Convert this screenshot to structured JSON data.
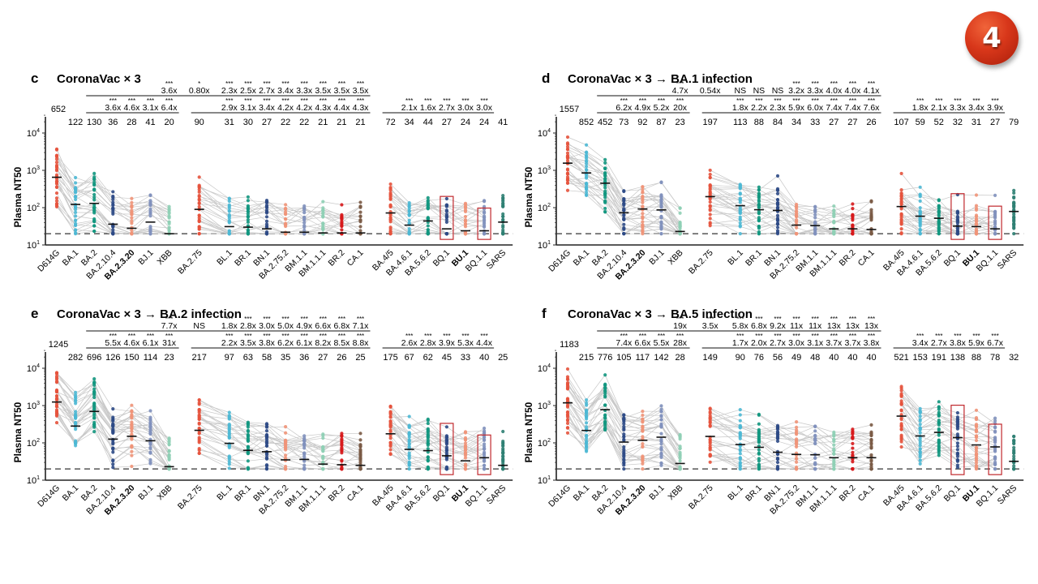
{
  "slide_badge": {
    "number": "4",
    "color": "#d8371a"
  },
  "shared": {
    "ylabel": "Plasma NT50",
    "yticks": [
      "10^1",
      "10^2",
      "10^3",
      "10^4"
    ],
    "ylim_log10": [
      1,
      4.3
    ],
    "detection_limit": 20,
    "categories": [
      "D614G",
      "BA.1",
      "BA.2",
      "BA.2.10.4",
      "BA.2.3.20",
      "BJ.1",
      "XBB",
      "BA.2.75",
      "BL.1",
      "BR.1",
      "BN.1",
      "BA.2.75.2",
      "BM.1.1",
      "BM.1.1.1",
      "BR.2",
      "CA.1",
      "BA.4/5",
      "BA.4.6.1",
      "BA.5.6.2",
      "BQ.1",
      "BU.1",
      "BQ.1.1",
      "SARS"
    ],
    "bold_categories": [
      "BA.2.3.20",
      "BU.1"
    ],
    "highlighted_categories": [
      "BQ.1",
      "BQ.1.1"
    ],
    "category_colors": [
      "#e5533d",
      "#4cb8d4",
      "#13977f",
      "#2e4a86",
      "#ef9478",
      "#8191bd",
      "#8fcfb5",
      "#e5533d",
      "#4cb8d4",
      "#13977f",
      "#2e4a86",
      "#ef9478",
      "#8191bd",
      "#8fcfb5",
      "#d7191c",
      "#7a5a45",
      "#e5533d",
      "#4cb8d4",
      "#13977f",
      "#2e4a86",
      "#ef9478",
      "#8191bd",
      "#2f7f73"
    ],
    "highlight_box_color": "#c0282d"
  },
  "chart_data": [
    {
      "type": "scatter",
      "panel_letter": "c",
      "title": "CoronaVac × 3",
      "ylabel": "Plasma NT50",
      "ylim": [
        10,
        20000
      ],
      "yscale": "log",
      "gmt_values": [
        652,
        122,
        130,
        36,
        28,
        41,
        20,
        90,
        31,
        30,
        27,
        22,
        22,
        21,
        21,
        21,
        72,
        34,
        44,
        27,
        24,
        24,
        41
      ],
      "fold_rows": [
        {
          "ref_index": 2,
          "start_index": 3,
          "values": [
            "3.6x",
            "4.6x",
            "3.1x",
            "6.4x"
          ],
          "stars": [
            "***",
            "***",
            "***",
            "***"
          ]
        },
        {
          "ref_index": 7,
          "start_index": 8,
          "values": [
            "2.9x",
            "3.1x",
            "3.4x",
            "4.2x",
            "4.2x",
            "4.3x",
            "4.4x",
            "4.3x"
          ],
          "stars": [
            "***",
            "***",
            "***",
            "***",
            "***",
            "***",
            "***",
            "***"
          ]
        },
        {
          "ref_index": 16,
          "start_index": 17,
          "values": [
            "2.1x",
            "1.6x",
            "2.7x",
            "3.0x",
            "3.0x"
          ],
          "stars": [
            "***",
            "***",
            "***",
            "***",
            "***"
          ]
        },
        {
          "ref_index": 2,
          "start_index": 6,
          "values": [
            "3.6x",
            "0.80x",
            "2.3x",
            "2.5x",
            "2.7x",
            "3.4x",
            "3.3x",
            "3.5x",
            "3.5x",
            "3.5x"
          ],
          "stars": [
            "***",
            "*",
            "***",
            "***",
            "***",
            "***",
            "***",
            "***",
            "***",
            "***"
          ],
          "upper": true
        }
      ]
    },
    {
      "type": "scatter",
      "panel_letter": "d",
      "title": "CoronaVac × 3 → BA.1 infection",
      "ylabel": "Plasma NT50",
      "ylim": [
        10,
        20000
      ],
      "yscale": "log",
      "gmt_values": [
        1557,
        852,
        452,
        73,
        92,
        87,
        23,
        197,
        113,
        88,
        84,
        34,
        33,
        27,
        27,
        26,
        107,
        59,
        52,
        32,
        31,
        27,
        79
      ],
      "fold_rows": [
        {
          "ref_index": 2,
          "start_index": 3,
          "values": [
            "6.2x",
            "4.9x",
            "5.2x",
            "20x"
          ],
          "stars": [
            "***",
            "***",
            "***",
            "***"
          ]
        },
        {
          "ref_index": 7,
          "start_index": 8,
          "values": [
            "1.8x",
            "2.2x",
            "2.3x",
            "5.9x",
            "6.0x",
            "7.4x",
            "7.4x",
            "7.6x"
          ],
          "stars": [
            "***",
            "***",
            "***",
            "***",
            "***",
            "***",
            "***",
            "***"
          ]
        },
        {
          "ref_index": 16,
          "start_index": 17,
          "values": [
            "1.8x",
            "2.1x",
            "3.3x",
            "3.4x",
            "3.9x"
          ],
          "stars": [
            "***",
            "***",
            "***",
            "***",
            "***"
          ]
        },
        {
          "ref_index": 2,
          "start_index": 6,
          "values": [
            "4.7x",
            "0.54x",
            "NS",
            "NS",
            "NS",
            "3.2x",
            "3.3x",
            "4.0x",
            "4.0x",
            "4.1x"
          ],
          "stars": [
            "***",
            "**",
            "",
            "",
            "",
            "***",
            "***",
            "***",
            "***",
            "***"
          ],
          "upper": true
        }
      ]
    },
    {
      "type": "scatter",
      "panel_letter": "e",
      "title": "CoronaVac × 3 → BA.2 infection",
      "ylabel": "Plasma NT50",
      "ylim": [
        10,
        20000
      ],
      "yscale": "log",
      "gmt_values": [
        1245,
        282,
        696,
        126,
        150,
        114,
        23,
        217,
        97,
        63,
        58,
        35,
        36,
        27,
        26,
        25,
        175,
        67,
        62,
        45,
        33,
        40,
        25
      ],
      "fold_rows": [
        {
          "ref_index": 2,
          "start_index": 3,
          "values": [
            "5.5x",
            "4.6x",
            "6.1x",
            "31x"
          ],
          "stars": [
            "***",
            "***",
            "***",
            "***"
          ]
        },
        {
          "ref_index": 7,
          "start_index": 8,
          "values": [
            "2.2x",
            "3.5x",
            "3.8x",
            "6.2x",
            "6.1x",
            "8.2x",
            "8.5x",
            "8.8x"
          ],
          "stars": [
            "***",
            "***",
            "***",
            "***",
            "***",
            "***",
            "***",
            "***"
          ]
        },
        {
          "ref_index": 16,
          "start_index": 17,
          "values": [
            "2.6x",
            "2.8x",
            "3.9x",
            "5.3x",
            "4.4x"
          ],
          "stars": [
            "***",
            "***",
            "***",
            "***",
            "***"
          ]
        },
        {
          "ref_index": 2,
          "start_index": 6,
          "values": [
            "7.7x",
            "NS",
            "1.8x",
            "2.8x",
            "3.0x",
            "5.0x",
            "4.9x",
            "6.6x",
            "6.8x",
            "7.1x"
          ],
          "stars": [
            "***",
            "",
            "***",
            "***",
            "***",
            "***",
            "***",
            "***",
            "***",
            "***"
          ],
          "upper": true
        }
      ]
    },
    {
      "type": "scatter",
      "panel_letter": "f",
      "title": "CoronaVac × 3 → BA.5 infection",
      "ylabel": "Plasma NT50",
      "ylim": [
        10,
        20000
      ],
      "yscale": "log",
      "gmt_values": [
        1183,
        215,
        776,
        105,
        117,
        142,
        28,
        149,
        90,
        76,
        56,
        49,
        48,
        40,
        40,
        40,
        521,
        153,
        191,
        138,
        88,
        78,
        32
      ],
      "fold_rows": [
        {
          "ref_index": 2,
          "start_index": 3,
          "values": [
            "7.4x",
            "6.6x",
            "5.5x",
            "28x"
          ],
          "stars": [
            "***",
            "***",
            "***",
            "***"
          ]
        },
        {
          "ref_index": 7,
          "start_index": 8,
          "values": [
            "1.7x",
            "2.0x",
            "2.7x",
            "3.0x",
            "3.1x",
            "3.7x",
            "3.7x",
            "3.8x"
          ],
          "stars": [
            "***",
            "***",
            "***",
            "***",
            "***",
            "***",
            "***",
            "***"
          ]
        },
        {
          "ref_index": 16,
          "start_index": 17,
          "values": [
            "3.4x",
            "2.7x",
            "3.8x",
            "5.9x",
            "6.7x"
          ],
          "stars": [
            "***",
            "***",
            "***",
            "***",
            "***"
          ]
        },
        {
          "ref_index": 2,
          "start_index": 6,
          "values": [
            "19x",
            "3.5x",
            "5.8x",
            "6.8x",
            "9.2x",
            "11x",
            "11x",
            "13x",
            "13x",
            "13x"
          ],
          "stars": [
            "***",
            "***",
            "***",
            "***",
            "***",
            "***",
            "***",
            "***",
            "***",
            "***"
          ],
          "upper": true
        }
      ]
    }
  ]
}
